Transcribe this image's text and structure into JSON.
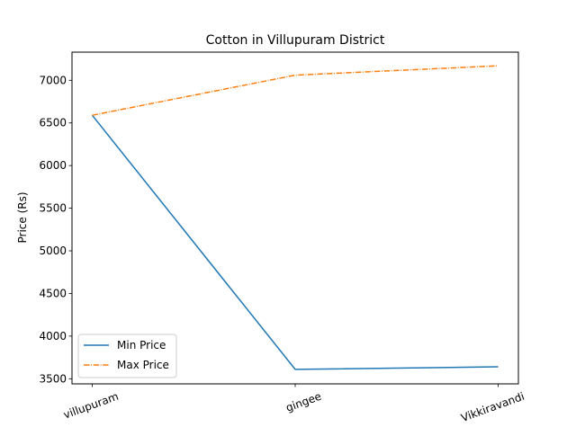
{
  "chart_data": {
    "type": "line",
    "title": "Cotton in Villupuram District",
    "xlabel": "",
    "ylabel": "Price (Rs)",
    "categories": [
      "villupuram",
      "gingee",
      "Vikkiravandi"
    ],
    "series": [
      {
        "name": "Min Price",
        "values": [
          6590,
          3610,
          3640
        ],
        "color": "#1f77b4",
        "line_style": "solid"
      },
      {
        "name": "Max Price",
        "values": [
          6590,
          7060,
          7170
        ],
        "color": "#ff7f0e",
        "line_style": "dashdot"
      }
    ],
    "ylim": [
      3440,
      7330
    ],
    "yticks": [
      3500,
      4000,
      4500,
      5000,
      5500,
      6000,
      6500,
      7000
    ],
    "grid": false,
    "legend_position": "lower-left"
  }
}
